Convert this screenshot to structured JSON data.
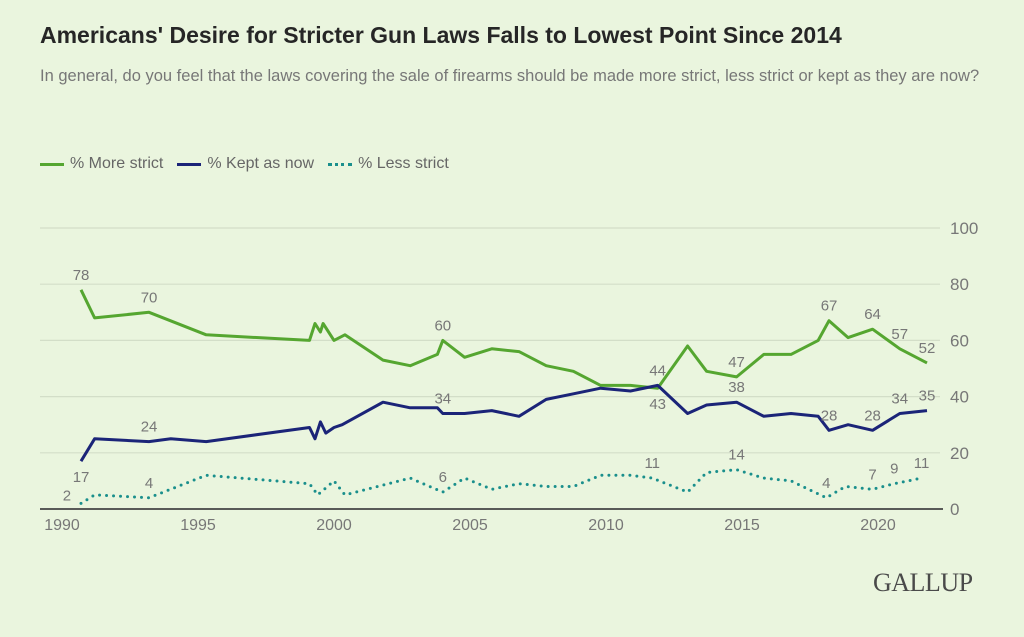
{
  "header": {
    "title": "Americans' Desire for Stricter Gun Laws Falls to Lowest Point Since 2014",
    "subtitle": "In general, do you feel that the laws covering the sale of firearms should be made more strict, less strict or kept as they are now?"
  },
  "logo": "GALLUP",
  "chart_data": {
    "type": "line",
    "title": "Americans' Desire for Stricter Gun Laws Falls to Lowest Point Since 2014",
    "xlim": [
      1990,
      2022
    ],
    "ylim": [
      0,
      100
    ],
    "x_ticks": [
      1990,
      1995,
      2000,
      2005,
      2010,
      2015,
      2020
    ],
    "y_ticks": [
      0,
      20,
      40,
      60,
      80,
      100
    ],
    "y_axis_side": "right",
    "grid": true,
    "legend_placement": "top-left",
    "series": [
      {
        "name": "% More strict",
        "color": "#55a630",
        "style": "solid",
        "points": [
          [
            1990.7,
            78
          ],
          [
            1991.2,
            68
          ],
          [
            1993.2,
            70
          ],
          [
            1995.3,
            62
          ],
          [
            1999.1,
            60
          ],
          [
            1999.3,
            66
          ],
          [
            1999.5,
            63
          ],
          [
            1999.6,
            66
          ],
          [
            2000.0,
            60
          ],
          [
            2000.4,
            62
          ],
          [
            2001.8,
            53
          ],
          [
            2002.8,
            51
          ],
          [
            2003.8,
            55
          ],
          [
            2004.0,
            60
          ],
          [
            2004.8,
            54
          ],
          [
            2005.8,
            57
          ],
          [
            2006.8,
            56
          ],
          [
            2007.8,
            51
          ],
          [
            2008.8,
            49
          ],
          [
            2009.8,
            44
          ],
          [
            2010.9,
            44
          ],
          [
            2011.9,
            43
          ],
          [
            2013.0,
            58
          ],
          [
            2013.7,
            49
          ],
          [
            2014.8,
            47
          ],
          [
            2015.8,
            55
          ],
          [
            2016.8,
            55
          ],
          [
            2017.8,
            60
          ],
          [
            2018.2,
            67
          ],
          [
            2018.9,
            61
          ],
          [
            2019.8,
            64
          ],
          [
            2020.8,
            57
          ],
          [
            2021.8,
            52
          ]
        ],
        "labeled_points": [
          0,
          2,
          13,
          21,
          24,
          28,
          30,
          31,
          32
        ]
      },
      {
        "name": "% Kept as now",
        "color": "#1b2478",
        "style": "solid",
        "points": [
          [
            1990.7,
            17
          ],
          [
            1991.2,
            25
          ],
          [
            1993.2,
            24
          ],
          [
            1994.0,
            25
          ],
          [
            1995.3,
            24
          ],
          [
            1999.1,
            29
          ],
          [
            1999.3,
            25
          ],
          [
            1999.5,
            31
          ],
          [
            1999.7,
            27
          ],
          [
            2000.0,
            29
          ],
          [
            2000.3,
            30
          ],
          [
            2001.8,
            38
          ],
          [
            2002.8,
            36
          ],
          [
            2003.8,
            36
          ],
          [
            2004.0,
            34
          ],
          [
            2004.8,
            34
          ],
          [
            2005.8,
            35
          ],
          [
            2006.8,
            33
          ],
          [
            2007.8,
            39
          ],
          [
            2008.8,
            41
          ],
          [
            2009.8,
            43
          ],
          [
            2010.9,
            42
          ],
          [
            2011.9,
            44
          ],
          [
            2013.0,
            34
          ],
          [
            2013.7,
            37
          ],
          [
            2014.8,
            38
          ],
          [
            2015.8,
            33
          ],
          [
            2016.8,
            34
          ],
          [
            2017.8,
            33
          ],
          [
            2018.2,
            28
          ],
          [
            2018.9,
            30
          ],
          [
            2019.8,
            28
          ],
          [
            2020.8,
            34
          ],
          [
            2021.8,
            35
          ]
        ],
        "labeled_points": [
          0,
          2,
          14,
          22,
          25,
          29,
          31,
          32,
          33
        ]
      },
      {
        "name": "% Less strict",
        "color": "#1a8f8c",
        "style": "dotted",
        "points": [
          [
            1990.7,
            2
          ],
          [
            1991.2,
            5
          ],
          [
            1993.2,
            4
          ],
          [
            1995.3,
            12
          ],
          [
            1999.1,
            9
          ],
          [
            1999.4,
            5
          ],
          [
            2000.0,
            10
          ],
          [
            2000.4,
            5
          ],
          [
            2002.8,
            11
          ],
          [
            2004.0,
            6
          ],
          [
            2004.8,
            11
          ],
          [
            2005.8,
            7
          ],
          [
            2006.8,
            9
          ],
          [
            2007.8,
            8
          ],
          [
            2008.8,
            8
          ],
          [
            2009.8,
            12
          ],
          [
            2010.9,
            12
          ],
          [
            2011.7,
            11
          ],
          [
            2013.0,
            6
          ],
          [
            2013.7,
            13
          ],
          [
            2014.8,
            14
          ],
          [
            2015.8,
            11
          ],
          [
            2016.8,
            10
          ],
          [
            2018.1,
            4
          ],
          [
            2018.8,
            8
          ],
          [
            2019.8,
            7
          ],
          [
            2020.6,
            9
          ],
          [
            2021.6,
            11
          ]
        ],
        "labeled_points": [
          0,
          2,
          9,
          17,
          20,
          23,
          25,
          26,
          27
        ]
      }
    ]
  }
}
